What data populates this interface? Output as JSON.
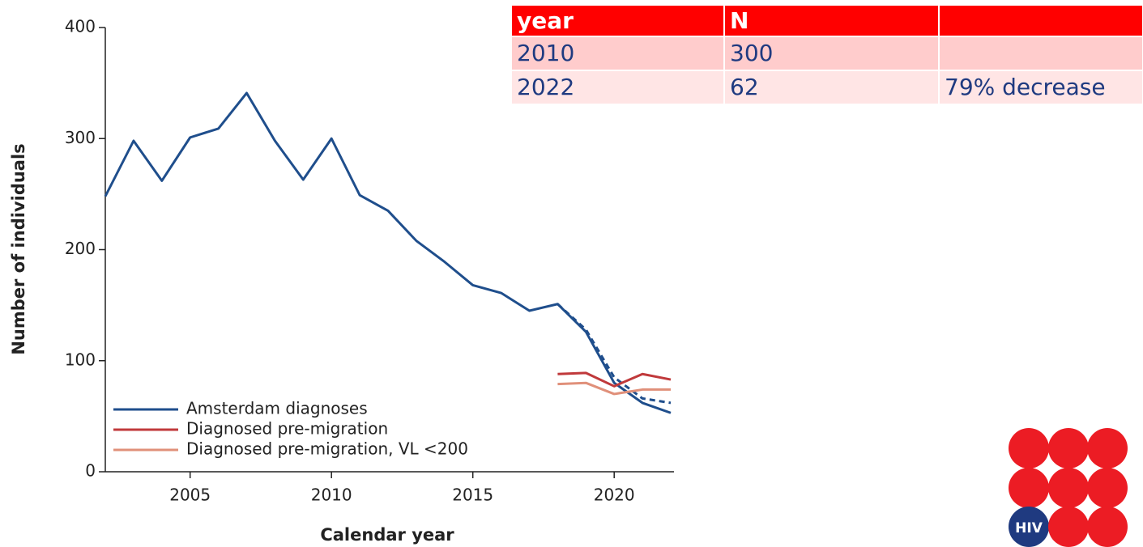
{
  "chart_data": {
    "type": "line",
    "xlabel": "Calendar year",
    "ylabel": "Number of individuals",
    "x": [
      2002,
      2003,
      2004,
      2005,
      2006,
      2007,
      2008,
      2009,
      2010,
      2011,
      2012,
      2013,
      2014,
      2015,
      2016,
      2017,
      2018,
      2019,
      2020,
      2021,
      2022
    ],
    "xlim": [
      2002,
      2022
    ],
    "xticks": [
      2005,
      2010,
      2015,
      2020
    ],
    "ylim": [
      0,
      400
    ],
    "yticks": [
      0,
      100,
      200,
      300,
      400
    ],
    "legend": "lower left",
    "series": [
      {
        "name": "Amsterdam diagnoses",
        "color": "#1f4e8c",
        "values": [
          248,
          298,
          262,
          301,
          309,
          341,
          298,
          263,
          300,
          249,
          235,
          208,
          189,
          168,
          161,
          145,
          151,
          126,
          80,
          62,
          53
        ]
      },
      {
        "color": "#1f4e8c",
        "dashed": true,
        "values": [
          null,
          null,
          null,
          null,
          null,
          null,
          null,
          null,
          null,
          null,
          null,
          null,
          null,
          null,
          null,
          null,
          151,
          128,
          85,
          66,
          62
        ]
      },
      {
        "name": "Diagnosed pre-migration",
        "color": "#c0393b",
        "values": [
          null,
          null,
          null,
          null,
          null,
          null,
          null,
          null,
          null,
          null,
          null,
          null,
          null,
          null,
          null,
          null,
          88,
          89,
          77,
          88,
          83
        ]
      },
      {
        "name": "Diagnosed pre-migration, VL <200",
        "color": "#e0907a",
        "values": [
          null,
          null,
          null,
          null,
          null,
          null,
          null,
          null,
          null,
          null,
          null,
          null,
          null,
          null,
          null,
          null,
          79,
          80,
          70,
          74,
          74
        ]
      }
    ]
  },
  "table": {
    "header": [
      "year",
      "N"
    ],
    "rows": [
      [
        "2010",
        "300"
      ],
      [
        "2022",
        "62",
        "79% decrease"
      ]
    ]
  },
  "logo": {
    "text": "HIV"
  }
}
